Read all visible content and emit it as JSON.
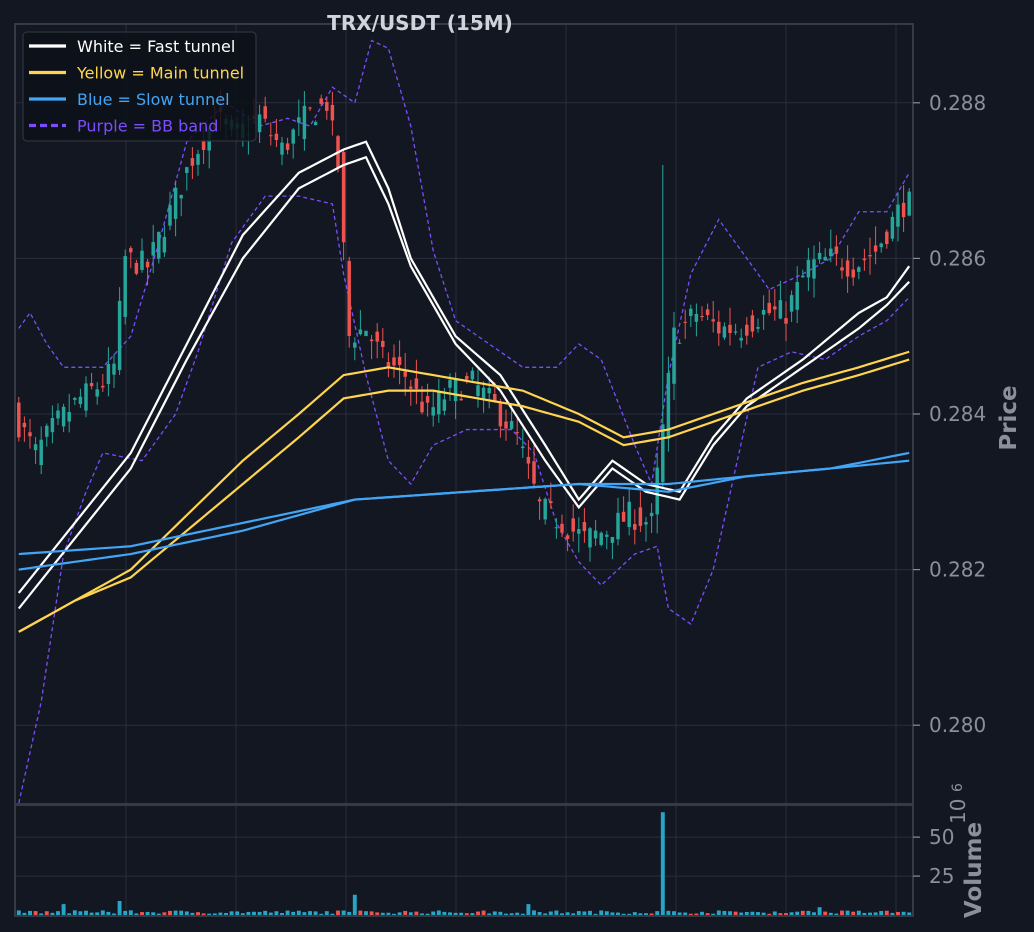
{
  "chart_data": {
    "type": "line",
    "title": "TRX/USDT (15M)",
    "price_panel": {
      "ylabel": "Price",
      "ylim": [
        0.279,
        0.289
      ],
      "yticks": [
        0.28,
        0.282,
        0.284,
        0.286,
        0.288
      ],
      "ytick_labels": [
        "0.280",
        "0.282",
        "0.284",
        "0.286",
        "0.288"
      ],
      "grid": true
    },
    "volume_panel": {
      "ylabel": "Volume",
      "exponent_label": "10",
      "exponent_power": "6",
      "ylim": [
        0,
        70
      ],
      "yticks": [
        25,
        50
      ],
      "ytick_labels": [
        "25",
        "50"
      ],
      "grid": true
    },
    "legend": {
      "placement": "top-left",
      "entries": [
        {
          "label": "White = Fast tunnel",
          "color": "#ffffff",
          "style": "solid"
        },
        {
          "label": "Yellow = Main tunnel",
          "color": "#ffd54f",
          "style": "solid"
        },
        {
          "label": "Blue = Slow tunnel",
          "color": "#42a5f5",
          "style": "solid"
        },
        {
          "label": "Purple = BB band",
          "color": "#7c4dff",
          "style": "dashed"
        }
      ]
    },
    "colors": {
      "background": "#131722",
      "grid": "#2a2e39",
      "up": "#26a69a",
      "down": "#ef5350",
      "volume": "#26a5c6"
    },
    "x_count": 160,
    "series": [
      {
        "key": "fast_a",
        "color": "#ffffff",
        "points": [
          [
            0,
            0.2817
          ],
          [
            10,
            0.2826
          ],
          [
            20,
            0.2835
          ],
          [
            30,
            0.2849
          ],
          [
            40,
            0.2863
          ],
          [
            50,
            0.2871
          ],
          [
            58,
            0.2874
          ],
          [
            62,
            0.2875
          ],
          [
            66,
            0.2869
          ],
          [
            70,
            0.286
          ],
          [
            78,
            0.285
          ],
          [
            86,
            0.2845
          ],
          [
            94,
            0.2836
          ],
          [
            100,
            0.2829
          ],
          [
            106,
            0.2834
          ],
          [
            112,
            0.2831
          ],
          [
            118,
            0.283
          ],
          [
            124,
            0.2837
          ],
          [
            130,
            0.2842
          ],
          [
            140,
            0.2847
          ],
          [
            150,
            0.2853
          ],
          [
            155,
            0.2855
          ],
          [
            159,
            0.2859
          ]
        ]
      },
      {
        "key": "fast_b",
        "color": "#ffffff",
        "points": [
          [
            0,
            0.2815
          ],
          [
            10,
            0.2824
          ],
          [
            20,
            0.2833
          ],
          [
            30,
            0.2847
          ],
          [
            40,
            0.286
          ],
          [
            50,
            0.2869
          ],
          [
            58,
            0.2872
          ],
          [
            62,
            0.2873
          ],
          [
            66,
            0.2867
          ],
          [
            70,
            0.2859
          ],
          [
            78,
            0.2849
          ],
          [
            86,
            0.2843
          ],
          [
            94,
            0.2834
          ],
          [
            100,
            0.2828
          ],
          [
            106,
            0.2833
          ],
          [
            112,
            0.283
          ],
          [
            118,
            0.2829
          ],
          [
            124,
            0.2836
          ],
          [
            130,
            0.2841
          ],
          [
            140,
            0.2846
          ],
          [
            150,
            0.2851
          ],
          [
            155,
            0.2854
          ],
          [
            159,
            0.2857
          ]
        ]
      },
      {
        "key": "main_a",
        "color": "#ffd54f",
        "points": [
          [
            0,
            0.2812
          ],
          [
            10,
            0.2816
          ],
          [
            20,
            0.282
          ],
          [
            30,
            0.2827
          ],
          [
            40,
            0.2834
          ],
          [
            50,
            0.284
          ],
          [
            58,
            0.2845
          ],
          [
            66,
            0.2846
          ],
          [
            74,
            0.2845
          ],
          [
            82,
            0.2844
          ],
          [
            90,
            0.2843
          ],
          [
            100,
            0.284
          ],
          [
            108,
            0.2837
          ],
          [
            116,
            0.2838
          ],
          [
            124,
            0.284
          ],
          [
            132,
            0.2842
          ],
          [
            140,
            0.2844
          ],
          [
            150,
            0.2846
          ],
          [
            159,
            0.2848
          ]
        ]
      },
      {
        "key": "main_b",
        "color": "#ffd54f",
        "points": [
          [
            0,
            0.2812
          ],
          [
            10,
            0.2816
          ],
          [
            20,
            0.2819
          ],
          [
            30,
            0.2825
          ],
          [
            40,
            0.2831
          ],
          [
            50,
            0.2837
          ],
          [
            58,
            0.2842
          ],
          [
            66,
            0.2843
          ],
          [
            74,
            0.2843
          ],
          [
            82,
            0.2842
          ],
          [
            90,
            0.2841
          ],
          [
            100,
            0.2839
          ],
          [
            108,
            0.2836
          ],
          [
            116,
            0.2837
          ],
          [
            124,
            0.2839
          ],
          [
            132,
            0.2841
          ],
          [
            140,
            0.2843
          ],
          [
            150,
            0.2845
          ],
          [
            159,
            0.2847
          ]
        ]
      },
      {
        "key": "slow_a",
        "color": "#42a5f5",
        "points": [
          [
            0,
            0.2822
          ],
          [
            20,
            0.2823
          ],
          [
            40,
            0.2826
          ],
          [
            60,
            0.2829
          ],
          [
            80,
            0.283
          ],
          [
            100,
            0.2831
          ],
          [
            116,
            0.2831
          ],
          [
            130,
            0.2832
          ],
          [
            145,
            0.2833
          ],
          [
            159,
            0.2835
          ]
        ]
      },
      {
        "key": "slow_b",
        "color": "#42a5f5",
        "points": [
          [
            0,
            0.282
          ],
          [
            20,
            0.2822
          ],
          [
            40,
            0.2825
          ],
          [
            60,
            0.2829
          ],
          [
            80,
            0.283
          ],
          [
            100,
            0.2831
          ],
          [
            116,
            0.283
          ],
          [
            130,
            0.2832
          ],
          [
            145,
            0.2833
          ],
          [
            159,
            0.2834
          ]
        ]
      },
      {
        "key": "bb_upper",
        "color": "#7c4dff",
        "dashed": true,
        "points": [
          [
            0,
            0.2851
          ],
          [
            2,
            0.2853
          ],
          [
            5,
            0.2849
          ],
          [
            8,
            0.2846
          ],
          [
            15,
            0.2846
          ],
          [
            20,
            0.285
          ],
          [
            25,
            0.2862
          ],
          [
            30,
            0.2875
          ],
          [
            37,
            0.288
          ],
          [
            43,
            0.2877
          ],
          [
            48,
            0.2878
          ],
          [
            52,
            0.2877
          ],
          [
            56,
            0.2882
          ],
          [
            60,
            0.288
          ],
          [
            63,
            0.2888
          ],
          [
            66,
            0.2887
          ],
          [
            70,
            0.2877
          ],
          [
            74,
            0.2861
          ],
          [
            78,
            0.2852
          ],
          [
            86,
            0.2848
          ],
          [
            90,
            0.2846
          ],
          [
            96,
            0.2846
          ],
          [
            100,
            0.2849
          ],
          [
            104,
            0.2847
          ],
          [
            110,
            0.2836
          ],
          [
            113,
            0.2831
          ],
          [
            116,
            0.2845
          ],
          [
            120,
            0.2858
          ],
          [
            125,
            0.2865
          ],
          [
            128,
            0.2862
          ],
          [
            134,
            0.2856
          ],
          [
            140,
            0.2858
          ],
          [
            145,
            0.286
          ],
          [
            150,
            0.2866
          ],
          [
            155,
            0.2866
          ],
          [
            159,
            0.2871
          ]
        ]
      },
      {
        "key": "bb_lower",
        "color": "#7c4dff",
        "dashed": true,
        "points": [
          [
            0,
            0.279
          ],
          [
            4,
            0.2803
          ],
          [
            8,
            0.2822
          ],
          [
            12,
            0.283
          ],
          [
            15,
            0.2835
          ],
          [
            22,
            0.2834
          ],
          [
            28,
            0.284
          ],
          [
            32,
            0.2848
          ],
          [
            38,
            0.2862
          ],
          [
            44,
            0.2868
          ],
          [
            50,
            0.2868
          ],
          [
            56,
            0.2867
          ],
          [
            58,
            0.2858
          ],
          [
            62,
            0.2845
          ],
          [
            66,
            0.2834
          ],
          [
            70,
            0.2831
          ],
          [
            74,
            0.2836
          ],
          [
            80,
            0.2838
          ],
          [
            88,
            0.2838
          ],
          [
            92,
            0.2835
          ],
          [
            96,
            0.2826
          ],
          [
            100,
            0.2821
          ],
          [
            104,
            0.2818
          ],
          [
            110,
            0.2822
          ],
          [
            114,
            0.2823
          ],
          [
            116,
            0.2815
          ],
          [
            120,
            0.2813
          ],
          [
            124,
            0.282
          ],
          [
            128,
            0.2833
          ],
          [
            132,
            0.2846
          ],
          [
            138,
            0.2848
          ],
          [
            144,
            0.2847
          ],
          [
            150,
            0.285
          ],
          [
            155,
            0.2852
          ],
          [
            159,
            0.2855
          ]
        ]
      }
    ],
    "candle_path": [
      [
        0,
        0.284
      ],
      [
        4,
        0.2835
      ],
      [
        8,
        0.2839
      ],
      [
        12,
        0.2842
      ],
      [
        16,
        0.2844
      ],
      [
        18,
        0.2846
      ],
      [
        20,
        0.286
      ],
      [
        24,
        0.2859
      ],
      [
        28,
        0.2866
      ],
      [
        32,
        0.2873
      ],
      [
        36,
        0.2878
      ],
      [
        40,
        0.2876
      ],
      [
        44,
        0.2878
      ],
      [
        48,
        0.2874
      ],
      [
        52,
        0.2878
      ],
      [
        56,
        0.288
      ],
      [
        58,
        0.2872
      ],
      [
        60,
        0.285
      ],
      [
        63,
        0.2851
      ],
      [
        66,
        0.2847
      ],
      [
        70,
        0.2845
      ],
      [
        74,
        0.284
      ],
      [
        78,
        0.2843
      ],
      [
        82,
        0.2844
      ],
      [
        86,
        0.2841
      ],
      [
        90,
        0.2837
      ],
      [
        94,
        0.2828
      ],
      [
        98,
        0.2826
      ],
      [
        102,
        0.2824
      ],
      [
        106,
        0.2825
      ],
      [
        110,
        0.2827
      ],
      [
        114,
        0.2826
      ],
      [
        116,
        0.2838
      ],
      [
        118,
        0.285
      ],
      [
        122,
        0.2853
      ],
      [
        126,
        0.2851
      ],
      [
        130,
        0.2851
      ],
      [
        134,
        0.2853
      ],
      [
        138,
        0.2853
      ],
      [
        142,
        0.2859
      ],
      [
        146,
        0.286
      ],
      [
        150,
        0.2859
      ],
      [
        154,
        0.2861
      ],
      [
        158,
        0.2866
      ],
      [
        159,
        0.2867
      ]
    ],
    "volume_spikes": [
      [
        8,
        7
      ],
      [
        18,
        9
      ],
      [
        60,
        13
      ],
      [
        91,
        7
      ],
      [
        115,
        66
      ],
      [
        143,
        5
      ]
    ],
    "volume_baseline": 2.5
  }
}
